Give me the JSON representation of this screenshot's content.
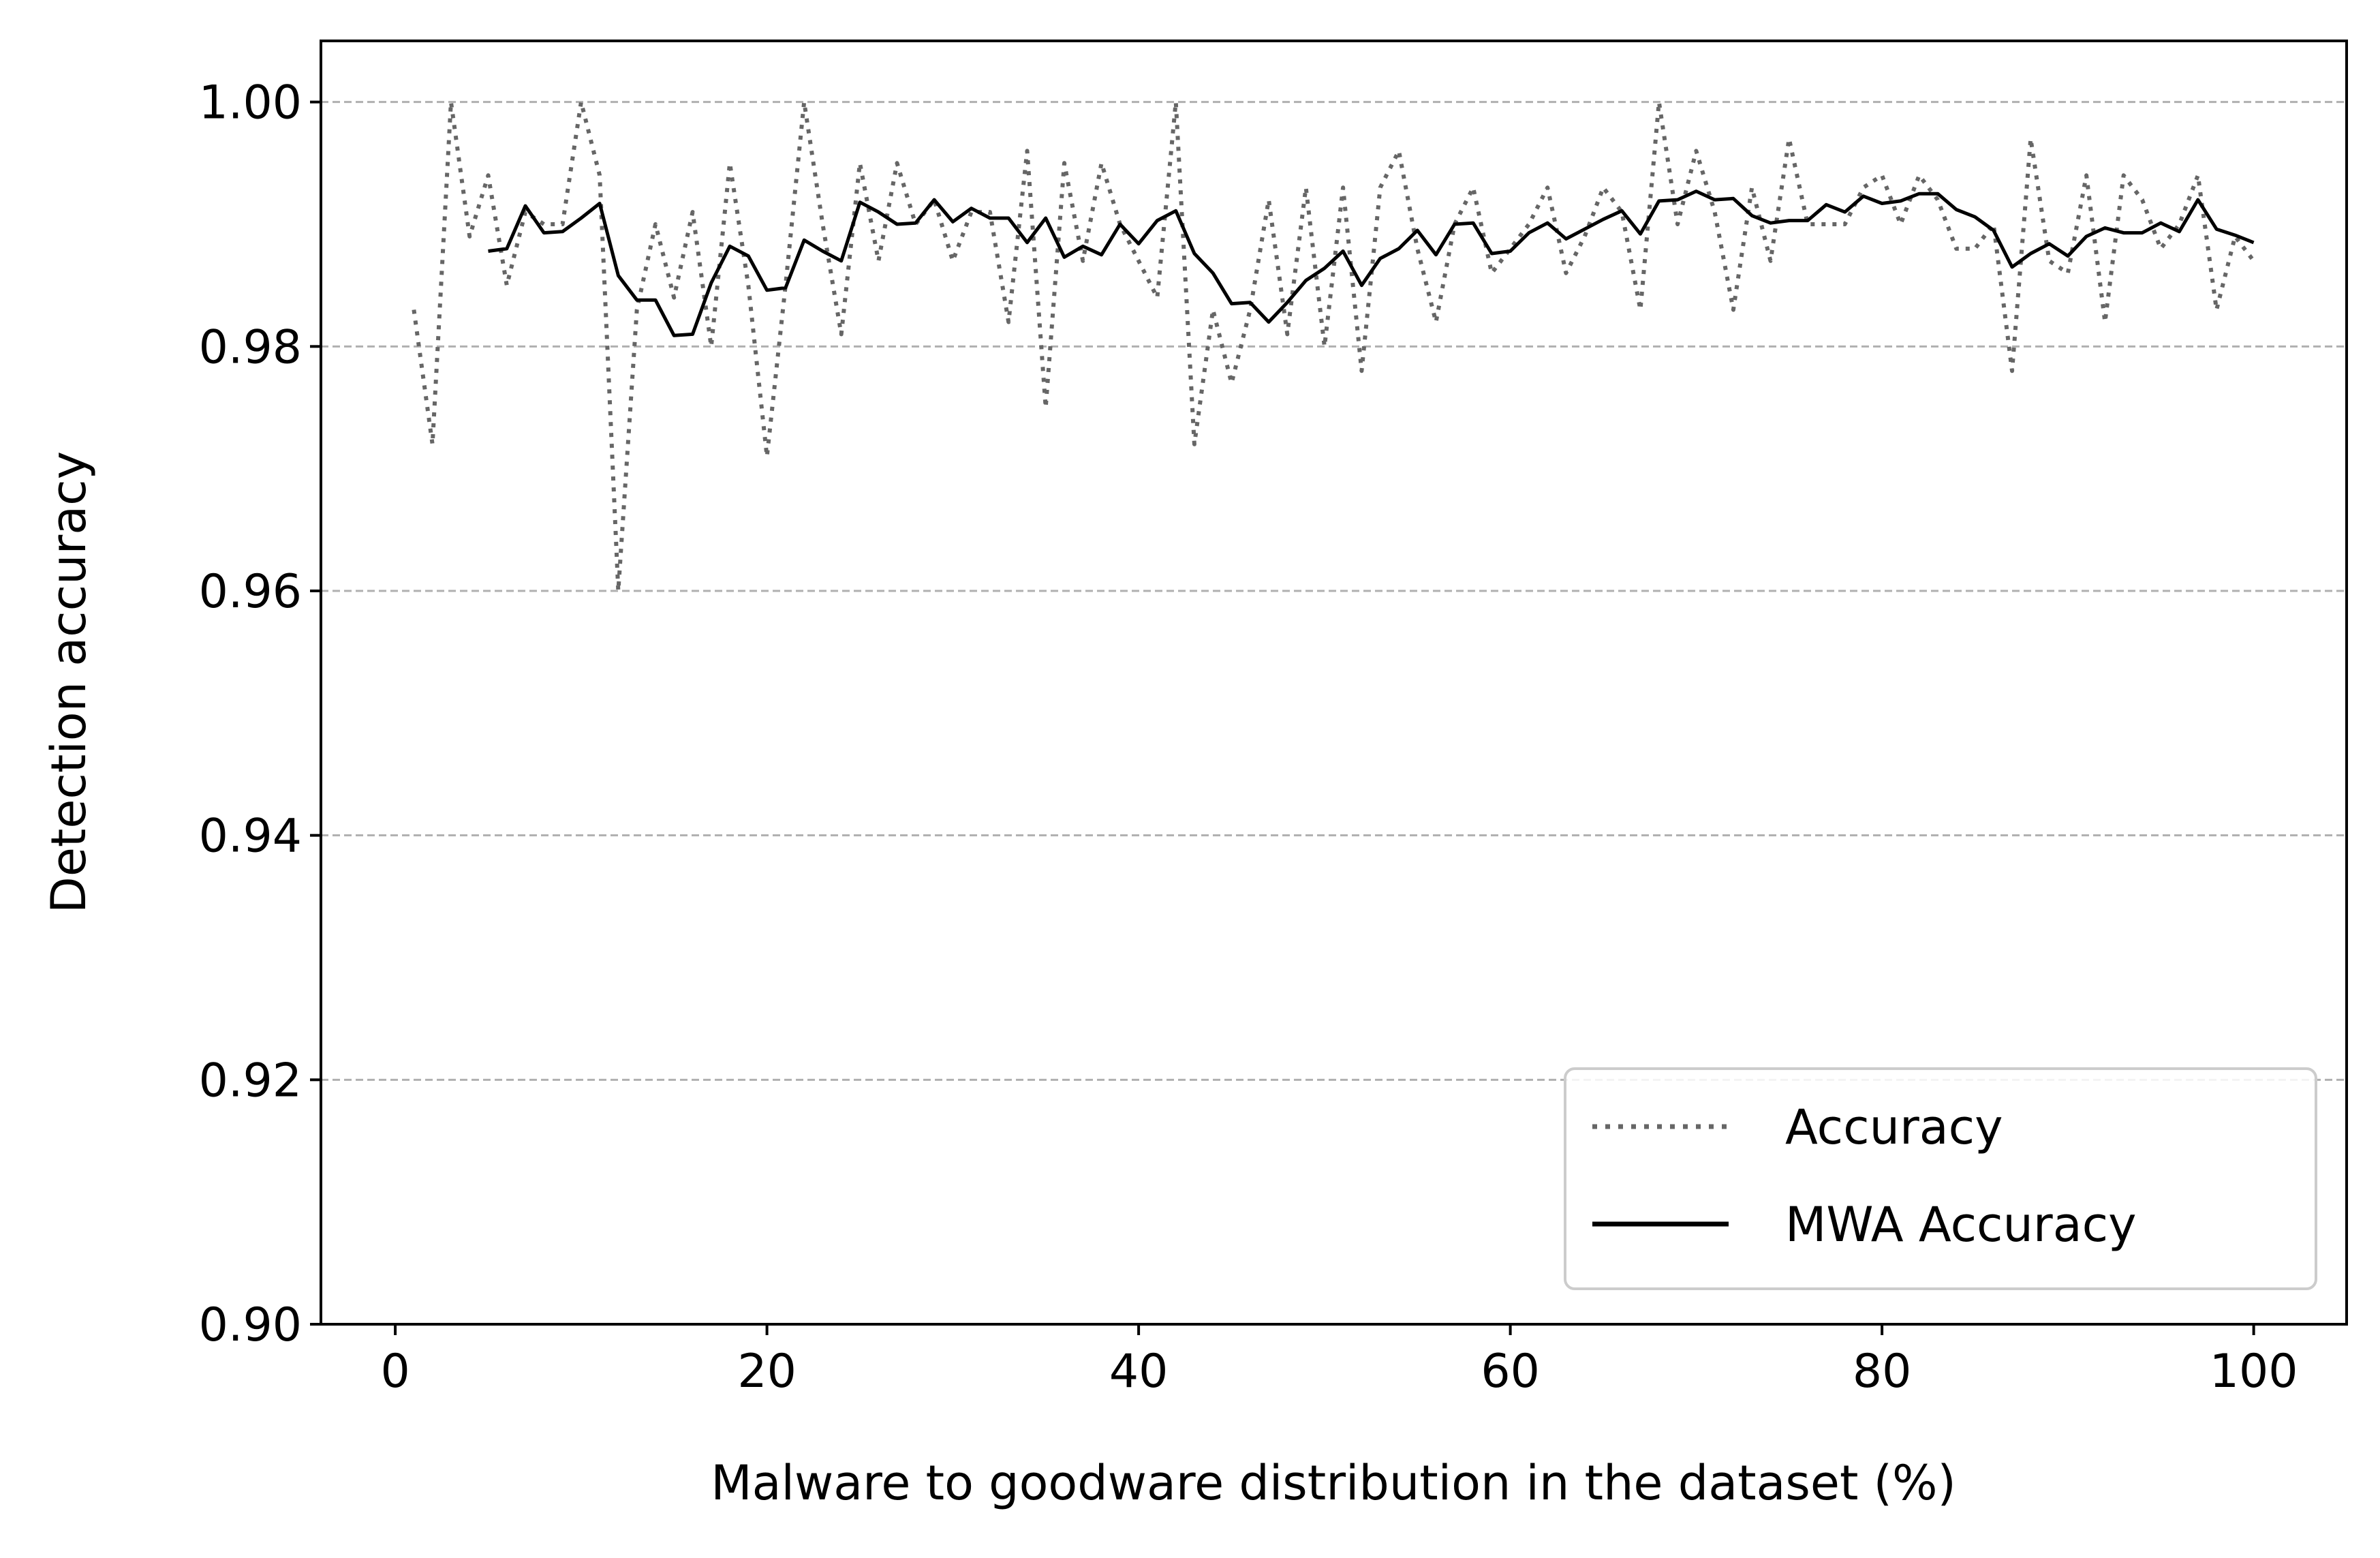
{
  "chart_data": {
    "type": "line",
    "xlabel": "Malware to goodware distribution in the dataset (%)",
    "ylabel": "Detection accuracy",
    "xlim": [
      -4,
      105
    ],
    "ylim": [
      0.9,
      1.005
    ],
    "xticks": [
      0,
      20,
      40,
      60,
      80,
      100
    ],
    "xtick_labels": [
      "0",
      "20",
      "40",
      "60",
      "80",
      "100"
    ],
    "yticks": [
      0.9,
      0.92,
      0.94,
      0.96,
      0.98,
      1.0
    ],
    "ytick_labels": [
      "0.90",
      "0.92",
      "0.94",
      "0.96",
      "0.98",
      "1.00"
    ],
    "grid": "y-axis dashed",
    "legend_position": "lower right",
    "series": [
      {
        "name": "Accuracy",
        "style": "dotted",
        "color": "#666666",
        "x": [
          1,
          2,
          3,
          4,
          5,
          6,
          7,
          8,
          9,
          10,
          11,
          12,
          13,
          14,
          15,
          16,
          17,
          18,
          19,
          20,
          21,
          22,
          23,
          24,
          25,
          26,
          27,
          28,
          29,
          30,
          31,
          32,
          33,
          34,
          35,
          36,
          37,
          38,
          39,
          40,
          41,
          42,
          43,
          44,
          45,
          46,
          47,
          48,
          49,
          50,
          51,
          52,
          53,
          54,
          55,
          56,
          57,
          58,
          59,
          60,
          61,
          62,
          63,
          64,
          65,
          66,
          67,
          68,
          69,
          70,
          71,
          72,
          73,
          74,
          75,
          76,
          77,
          78,
          79,
          80,
          81,
          82,
          83,
          84,
          85,
          86,
          87,
          88,
          89,
          90,
          91,
          92,
          93,
          94,
          95,
          96,
          97,
          98,
          99,
          100
        ],
        "y": [
          0.983,
          0.972,
          1.0,
          0.989,
          0.994,
          0.985,
          0.991,
          0.99,
          0.99,
          1.0,
          0.994,
          0.96,
          0.983,
          0.99,
          0.984,
          0.991,
          0.98,
          0.995,
          0.985,
          0.971,
          0.985,
          1.0,
          0.99,
          0.981,
          0.995,
          0.987,
          0.995,
          0.99,
          0.992,
          0.987,
          0.991,
          0.991,
          0.982,
          0.996,
          0.975,
          0.995,
          0.987,
          0.995,
          0.99,
          0.987,
          0.984,
          1.0,
          0.972,
          0.983,
          0.977,
          0.983,
          0.992,
          0.981,
          0.993,
          0.98,
          0.993,
          0.978,
          0.993,
          0.996,
          0.988,
          0.982,
          0.99,
          0.993,
          0.986,
          0.988,
          0.99,
          0.993,
          0.986,
          0.989,
          0.993,
          0.991,
          0.983,
          1.0,
          0.99,
          0.996,
          0.991,
          0.983,
          0.993,
          0.987,
          0.997,
          0.99,
          0.99,
          0.99,
          0.993,
          0.994,
          0.99,
          0.994,
          0.992,
          0.988,
          0.988,
          0.99,
          0.978,
          0.997,
          0.987,
          0.986,
          0.994,
          0.982,
          0.994,
          0.992,
          0.988,
          0.99,
          0.994,
          0.983,
          0.989,
          0.987
        ]
      },
      {
        "name": "MWA Accuracy",
        "style": "solid",
        "color": "#000000",
        "x": [
          5,
          6,
          7,
          8,
          9,
          10,
          11,
          12,
          13,
          14,
          15,
          16,
          17,
          18,
          19,
          20,
          21,
          22,
          23,
          24,
          25,
          26,
          27,
          28,
          29,
          30,
          31,
          32,
          33,
          34,
          35,
          36,
          37,
          38,
          39,
          40,
          41,
          42,
          43,
          44,
          45,
          46,
          47,
          48,
          49,
          50,
          51,
          52,
          53,
          54,
          55,
          56,
          57,
          58,
          59,
          60,
          61,
          62,
          63,
          64,
          65,
          66,
          67,
          68,
          69,
          70,
          71,
          72,
          73,
          74,
          75,
          76,
          77,
          78,
          79,
          80,
          81,
          82,
          83,
          84,
          85,
          86,
          87,
          88,
          89,
          90,
          91,
          92,
          93,
          94,
          95,
          96,
          97,
          98,
          99,
          100
        ],
        "y": [
          0.9878,
          0.988,
          0.9915,
          0.9893,
          0.9894,
          0.9905,
          0.9917,
          0.9858,
          0.9838,
          0.9838,
          0.9809,
          0.981,
          0.9852,
          0.9882,
          0.9874,
          0.9846,
          0.9848,
          0.9887,
          0.9878,
          0.987,
          0.9918,
          0.991,
          0.99,
          0.9901,
          0.992,
          0.9902,
          0.9913,
          0.9905,
          0.9905,
          0.9885,
          0.9905,
          0.9873,
          0.9882,
          0.9875,
          0.99,
          0.9884,
          0.9903,
          0.9911,
          0.9876,
          0.986,
          0.9835,
          0.9836,
          0.982,
          0.9836,
          0.9854,
          0.9864,
          0.9878,
          0.985,
          0.9872,
          0.988,
          0.9895,
          0.9875,
          0.99,
          0.9901,
          0.9876,
          0.9878,
          0.9893,
          0.9901,
          0.9888,
          0.9896,
          0.9904,
          0.9911,
          0.9892,
          0.9919,
          0.992,
          0.9927,
          0.992,
          0.9921,
          0.9907,
          0.9901,
          0.9903,
          0.9903,
          0.9916,
          0.991,
          0.9923,
          0.9917,
          0.9919,
          0.9925,
          0.9925,
          0.9912,
          0.9906,
          0.9895,
          0.9865,
          0.9876,
          0.9884,
          0.9874,
          0.989,
          0.9897,
          0.9893,
          0.9893,
          0.9901,
          0.9894,
          0.992,
          0.9896,
          0.9891,
          0.9885
        ]
      }
    ]
  }
}
